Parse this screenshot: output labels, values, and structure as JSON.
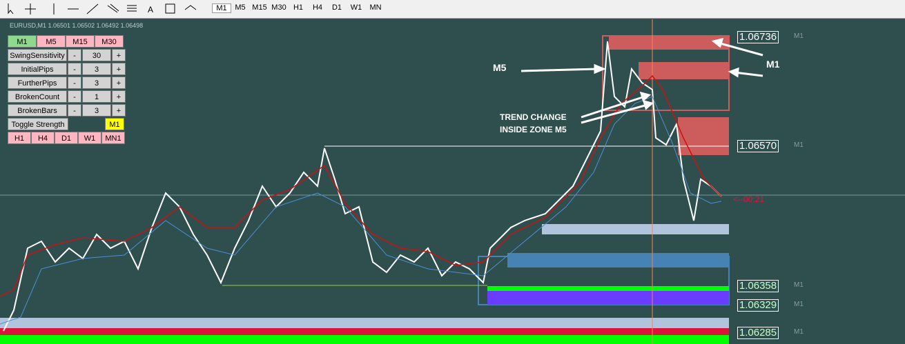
{
  "toolbar": {
    "timeframes": [
      "M1",
      "M5",
      "M15",
      "M30",
      "H1",
      "H4",
      "D1",
      "W1",
      "MN"
    ]
  },
  "chart": {
    "symbol_info": "EURUSD,M1  1.06501 1.06502 1.06492 1.06498",
    "countdown": "<--00:21",
    "annotations": [
      "M5",
      "M1",
      "TREND  CHANGE",
      "INSIDE ZONE M5"
    ],
    "price_labels": [
      {
        "price": "1.06736",
        "tag": "M1"
      },
      {
        "price": "1.06570",
        "tag": "M1"
      },
      {
        "price": "1.06358",
        "tag": "M1"
      },
      {
        "price": "1.06329",
        "tag": "M1"
      },
      {
        "price": "1.06285",
        "tag": "M1"
      }
    ]
  },
  "panel": {
    "top_buttons": [
      "M1",
      "M5",
      "M15",
      "M30"
    ],
    "rows": [
      [
        "SwingSensitivity",
        "-",
        "30",
        "+"
      ],
      [
        "InitialPips",
        "-",
        "3",
        "+"
      ],
      [
        "FurtherPips",
        "-",
        "3",
        "+"
      ],
      [
        "BrokenCount",
        "-",
        "1",
        "+"
      ],
      [
        "BrokenBars",
        "-",
        "3",
        "+"
      ]
    ],
    "toggle": "Toggle Strength",
    "toggle_value": "M1",
    "bottom_buttons": [
      "H1",
      "H4",
      "D1",
      "W1",
      "MN1"
    ]
  }
}
